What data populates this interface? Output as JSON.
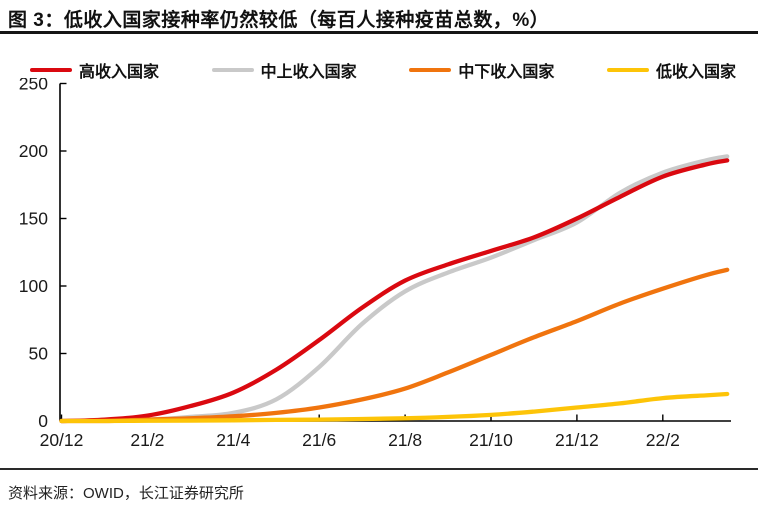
{
  "title": "图 3：低收入国家接种率仍然较低（每百人接种疫苗总数，%）",
  "source": "资料来源：OWID，长江证券研究所",
  "colors": {
    "high_income": "#da0910",
    "upper_middle_income": "#c9c9c9",
    "lower_middle_income": "#f0740e",
    "low_income": "#fdc408",
    "axis": "#000000",
    "text": "#1a1a1a"
  },
  "legend": [
    {
      "label": "高收入国家",
      "color": "#da0910"
    },
    {
      "label": "中上收入国家",
      "color": "#c9c9c9"
    },
    {
      "label": "中下收入国家",
      "color": "#f0740e"
    },
    {
      "label": "低收入国家",
      "color": "#fdc408"
    }
  ],
  "chart_data": {
    "type": "line",
    "title": "低收入国家接种率仍然较低（每百人接种疫苗总数，%）",
    "xlabel": "",
    "ylabel": "",
    "x_unit": "months since 2020-12",
    "x": [
      0,
      1,
      2,
      3,
      4,
      5,
      6,
      7,
      8,
      9,
      10,
      11,
      12,
      13,
      14,
      15,
      15.5
    ],
    "x_tick_positions": [
      0,
      2,
      4,
      6,
      8,
      10,
      12,
      14
    ],
    "x_tick_labels": [
      "20/12",
      "21/2",
      "21/4",
      "21/6",
      "21/8",
      "21/10",
      "21/12",
      "22/2"
    ],
    "y_ticks": [
      0,
      50,
      100,
      150,
      200,
      250
    ],
    "ylim": [
      0,
      250
    ],
    "xlim": [
      0,
      15.6
    ],
    "grid": false,
    "legend_position": "top",
    "series": [
      {
        "name": "高收入国家",
        "key": "high_income",
        "color": "#da0910",
        "values": [
          0,
          1,
          4,
          11,
          21,
          38,
          60,
          84,
          104,
          116,
          126,
          136,
          150,
          166,
          181,
          190,
          193
        ]
      },
      {
        "name": "中上收入国家",
        "key": "upper_middle_income",
        "color": "#c9c9c9",
        "values": [
          0,
          0.5,
          1,
          3,
          6,
          16,
          40,
          72,
          96,
          110,
          121,
          134,
          147,
          169,
          184,
          193,
          196
        ]
      },
      {
        "name": "中下收入国家",
        "key": "lower_middle_income",
        "color": "#f0740e",
        "values": [
          0,
          0,
          1,
          2,
          3.5,
          6,
          10,
          16,
          24,
          36,
          49,
          62,
          74,
          87,
          98,
          108,
          112
        ]
      },
      {
        "name": "低收入国家",
        "key": "low_income",
        "color": "#fdc408",
        "values": [
          0,
          0,
          0.2,
          0.3,
          0.5,
          0.8,
          1,
          1.5,
          2,
          3,
          4.5,
          7,
          10,
          13,
          17,
          19,
          20
        ]
      }
    ]
  }
}
